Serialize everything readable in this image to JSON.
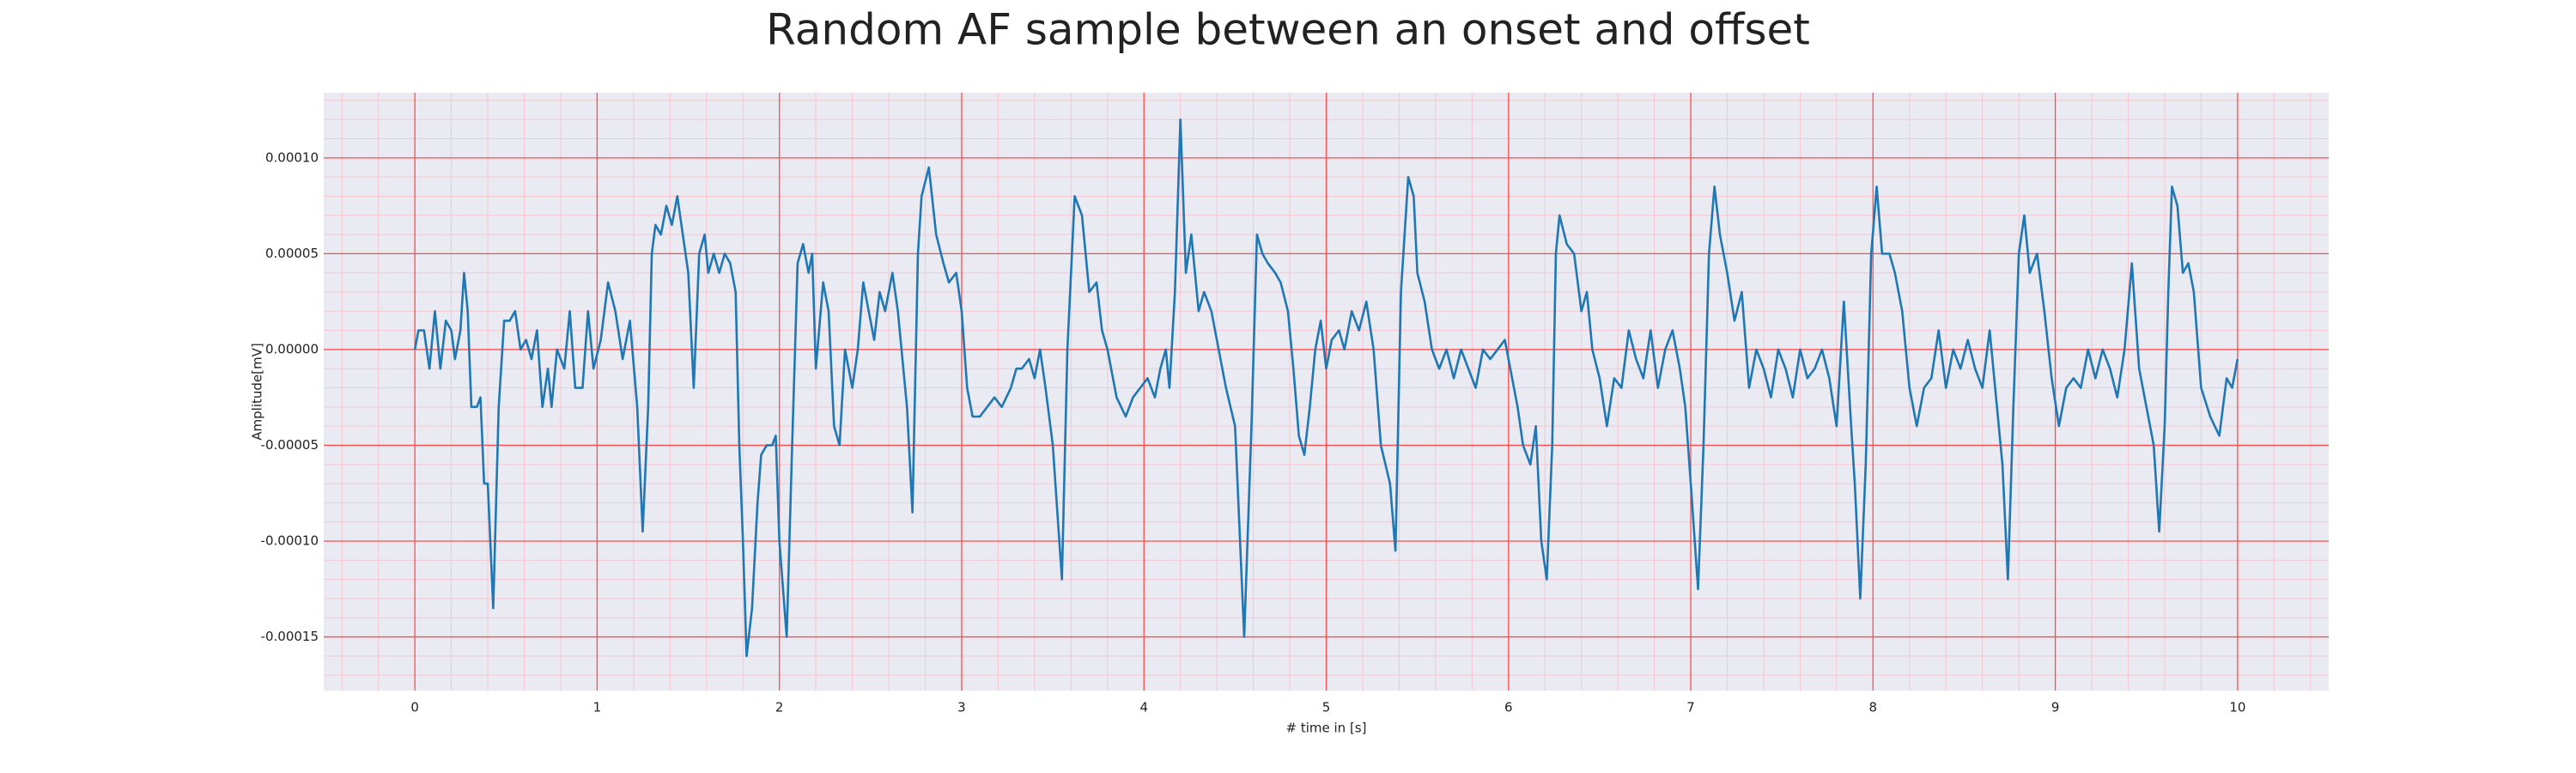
{
  "chart_data": {
    "type": "line",
    "title": "Random AF sample between an onset and offset",
    "xlabel": "# time in [s]",
    "ylabel": "Amplitude[mV]",
    "color": "#1f77b4",
    "background": "#eaeaf2",
    "grid": true,
    "grid_color": "#ff4d4d",
    "minor_grid": {
      "x": 0.2,
      "y": 1e-05,
      "color": "#f7c6cf"
    },
    "xlim": [
      -0.5,
      10.5
    ],
    "ylim": [
      -0.000178,
      0.000134
    ],
    "xticks": [
      0,
      1,
      2,
      3,
      4,
      5,
      6,
      7,
      8,
      9,
      10
    ],
    "yticks": [
      {
        "value": -0.00015,
        "label": "-0.00015"
      },
      {
        "value": -0.0001,
        "label": "-0.00010"
      },
      {
        "value": -5e-05,
        "label": "-0.00005"
      },
      {
        "value": 0,
        "label": "0.00000"
      },
      {
        "value": 5e-05,
        "label": "0.00005"
      },
      {
        "value": 0.0001,
        "label": "0.00010"
      }
    ],
    "x": [
      0,
      0.02,
      0.05,
      0.08,
      0.11,
      0.14,
      0.17,
      0.2,
      0.22,
      0.25,
      0.27,
      0.29,
      0.31,
      0.34,
      0.36,
      0.38,
      0.4,
      0.43,
      0.46,
      0.49,
      0.52,
      0.55,
      0.58,
      0.61,
      0.64,
      0.67,
      0.7,
      0.73,
      0.75,
      0.78,
      0.82,
      0.85,
      0.88,
      0.92,
      0.95,
      0.98,
      1.02,
      1.06,
      1.1,
      1.14,
      1.18,
      1.22,
      1.25,
      1.28,
      1.3,
      1.32,
      1.35,
      1.38,
      1.41,
      1.44,
      1.47,
      1.5,
      1.53,
      1.56,
      1.59,
      1.61,
      1.64,
      1.67,
      1.7,
      1.73,
      1.76,
      1.78,
      1.8,
      1.82,
      1.85,
      1.88,
      1.9,
      1.93,
      1.96,
      1.98,
      2.0,
      2.04,
      2.07,
      2.1,
      2.13,
      2.16,
      2.18,
      2.2,
      2.24,
      2.27,
      2.3,
      2.33,
      2.36,
      2.4,
      2.43,
      2.46,
      2.49,
      2.52,
      2.55,
      2.58,
      2.62,
      2.65,
      2.67,
      2.7,
      2.73,
      2.76,
      2.78,
      2.82,
      2.86,
      2.9,
      2.93,
      2.97,
      3.0,
      3.03,
      3.06,
      3.1,
      3.14,
      3.18,
      3.22,
      3.27,
      3.3,
      3.33,
      3.37,
      3.4,
      3.43,
      3.46,
      3.5,
      3.55,
      3.58,
      3.62,
      3.66,
      3.7,
      3.74,
      3.77,
      3.8,
      3.85,
      3.9,
      3.94,
      3.98,
      4.02,
      4.06,
      4.09,
      4.12,
      4.14,
      4.17,
      4.2,
      4.23,
      4.26,
      4.3,
      4.33,
      4.37,
      4.41,
      4.45,
      4.5,
      4.55,
      4.59,
      4.62,
      4.65,
      4.68,
      4.72,
      4.75,
      4.79,
      4.82,
      4.85,
      4.88,
      4.91,
      4.94,
      4.97,
      5.0,
      5.03,
      5.07,
      5.1,
      5.14,
      5.18,
      5.22,
      5.26,
      5.3,
      5.35,
      5.38,
      5.41,
      5.45,
      5.48,
      5.5,
      5.54,
      5.58,
      5.62,
      5.66,
      5.7,
      5.74,
      5.78,
      5.82,
      5.86,
      5.9,
      5.94,
      5.98,
      6.02,
      6.05,
      6.08,
      6.12,
      6.15,
      6.18,
      6.21,
      6.24,
      6.26,
      6.28,
      6.32,
      6.36,
      6.4,
      6.43,
      6.46,
      6.5,
      6.54,
      6.58,
      6.62,
      6.66,
      6.7,
      6.74,
      6.78,
      6.82,
      6.86,
      6.9,
      6.94,
      6.97,
      7.0,
      7.04,
      7.07,
      7.1,
      7.13,
      7.16,
      7.2,
      7.24,
      7.28,
      7.32,
      7.36,
      7.4,
      7.44,
      7.48,
      7.52,
      7.56,
      7.6,
      7.64,
      7.68,
      7.72,
      7.76,
      7.8,
      7.84,
      7.88,
      7.9,
      7.93,
      7.96,
      7.99,
      8.02,
      8.05,
      8.09,
      8.12,
      8.16,
      8.2,
      8.24,
      8.28,
      8.32,
      8.36,
      8.4,
      8.44,
      8.48,
      8.52,
      8.56,
      8.6,
      8.64,
      8.68,
      8.71,
      8.74,
      8.77,
      8.8,
      8.83,
      8.86,
      8.9,
      8.94,
      8.98,
      9.02,
      9.06,
      9.1,
      9.14,
      9.18,
      9.22,
      9.26,
      9.3,
      9.34,
      9.38,
      9.42,
      9.46,
      9.5,
      9.54,
      9.57,
      9.6,
      9.62,
      9.64,
      9.67,
      9.7,
      9.73,
      9.76,
      9.8,
      9.85,
      9.9,
      9.94,
      9.97,
      10.0
    ],
    "values": [
      0,
      1e-05,
      1e-05,
      -1e-05,
      2e-05,
      -1e-05,
      1.5e-05,
      1e-05,
      -5e-06,
      1e-05,
      4e-05,
      2e-05,
      -3e-05,
      -3e-05,
      -2.5e-05,
      -7e-05,
      -7e-05,
      -0.000135,
      -3e-05,
      1.5e-05,
      1.5e-05,
      2e-05,
      0,
      5e-06,
      -5e-06,
      1e-05,
      -3e-05,
      -1e-05,
      -3e-05,
      0,
      -1e-05,
      2e-05,
      -2e-05,
      -2e-05,
      2e-05,
      -1e-05,
      5e-06,
      3.5e-05,
      2e-05,
      -5e-06,
      1.5e-05,
      -3e-05,
      -9.5e-05,
      -3e-05,
      5e-05,
      6.5e-05,
      6e-05,
      7.5e-05,
      6.5e-05,
      8e-05,
      6e-05,
      4e-05,
      -2e-05,
      5e-05,
      6e-05,
      4e-05,
      5e-05,
      4e-05,
      5e-05,
      4.5e-05,
      3e-05,
      -5e-05,
      -0.0001,
      -0.00016,
      -0.000135,
      -8e-05,
      -5.5e-05,
      -5e-05,
      -5e-05,
      -4.5e-05,
      -0.0001,
      -0.00015,
      -5e-05,
      4.5e-05,
      5.5e-05,
      4e-05,
      5e-05,
      -1e-05,
      3.5e-05,
      2e-05,
      -4e-05,
      -5e-05,
      0,
      -2e-05,
      0,
      3.5e-05,
      2e-05,
      5e-06,
      3e-05,
      2e-05,
      4e-05,
      2e-05,
      0,
      -3e-05,
      -8.5e-05,
      5e-05,
      8e-05,
      9.5e-05,
      6e-05,
      4.5e-05,
      3.5e-05,
      4e-05,
      2e-05,
      -2e-05,
      -3.5e-05,
      -3.5e-05,
      -3e-05,
      -2.5e-05,
      -3e-05,
      -2e-05,
      -1e-05,
      -1e-05,
      -5e-06,
      -1.5e-05,
      0,
      -2e-05,
      -5e-05,
      -0.00012,
      0,
      8e-05,
      7e-05,
      3e-05,
      3.5e-05,
      1e-05,
      0,
      -2.5e-05,
      -3.5e-05,
      -2.5e-05,
      -2e-05,
      -1.5e-05,
      -2.5e-05,
      -1e-05,
      0,
      -2e-05,
      3e-05,
      0.00012,
      4e-05,
      6e-05,
      2e-05,
      3e-05,
      2e-05,
      0,
      -2e-05,
      -4e-05,
      -0.00015,
      -4e-05,
      6e-05,
      5e-05,
      4.5e-05,
      4e-05,
      3.5e-05,
      2e-05,
      -1e-05,
      -4.5e-05,
      -5.5e-05,
      -3e-05,
      0,
      1.5e-05,
      -1e-05,
      5e-06,
      1e-05,
      0,
      2e-05,
      1e-05,
      2.5e-05,
      0,
      -5e-05,
      -7e-05,
      -0.000105,
      3e-05,
      9e-05,
      8e-05,
      4e-05,
      2.5e-05,
      0,
      -1e-05,
      0,
      -1.5e-05,
      0,
      -1e-05,
      -2e-05,
      0,
      -5e-06,
      0,
      5e-06,
      -1.5e-05,
      -3e-05,
      -5e-05,
      -6e-05,
      -4e-05,
      -0.0001,
      -0.00012,
      -5e-05,
      5e-05,
      7e-05,
      5.5e-05,
      5e-05,
      2e-05,
      3e-05,
      0,
      -1.5e-05,
      -4e-05,
      -1.5e-05,
      -2e-05,
      1e-05,
      -5e-06,
      -1.5e-05,
      1e-05,
      -2e-05,
      0,
      1e-05,
      -1e-05,
      -3e-05,
      -7e-05,
      -0.000125,
      -5e-05,
      5e-05,
      8.5e-05,
      6e-05,
      4e-05,
      1.5e-05,
      3e-05,
      -2e-05,
      0,
      -1e-05,
      -2.5e-05,
      0,
      -1e-05,
      -2.5e-05,
      0,
      -1.5e-05,
      -1e-05,
      0,
      -1.5e-05,
      -4e-05,
      2.5e-05,
      -4e-05,
      -7e-05,
      -0.00013,
      -6e-05,
      5e-05,
      8.5e-05,
      5e-05,
      5e-05,
      4e-05,
      2e-05,
      -2e-05,
      -4e-05,
      -2e-05,
      -1.5e-05,
      1e-05,
      -2e-05,
      0,
      -1e-05,
      5e-06,
      -1e-05,
      -2e-05,
      1e-05,
      -3e-05,
      -6e-05,
      -0.00012,
      -3e-05,
      5e-05,
      7e-05,
      4e-05,
      5e-05,
      2e-05,
      -1.5e-05,
      -4e-05,
      -2e-05,
      -1.5e-05,
      -2e-05,
      0,
      -1.5e-05,
      0,
      -1e-05,
      -2.5e-05,
      0,
      4.5e-05,
      -1e-05,
      -3e-05,
      -5e-05,
      -9.5e-05,
      -4e-05,
      3e-05,
      8.5e-05,
      7.5e-05,
      4e-05,
      4.5e-05,
      3e-05,
      -2e-05,
      -3.5e-05,
      -4.5e-05,
      -1.5e-05,
      -2e-05,
      -5e-06
    ]
  }
}
